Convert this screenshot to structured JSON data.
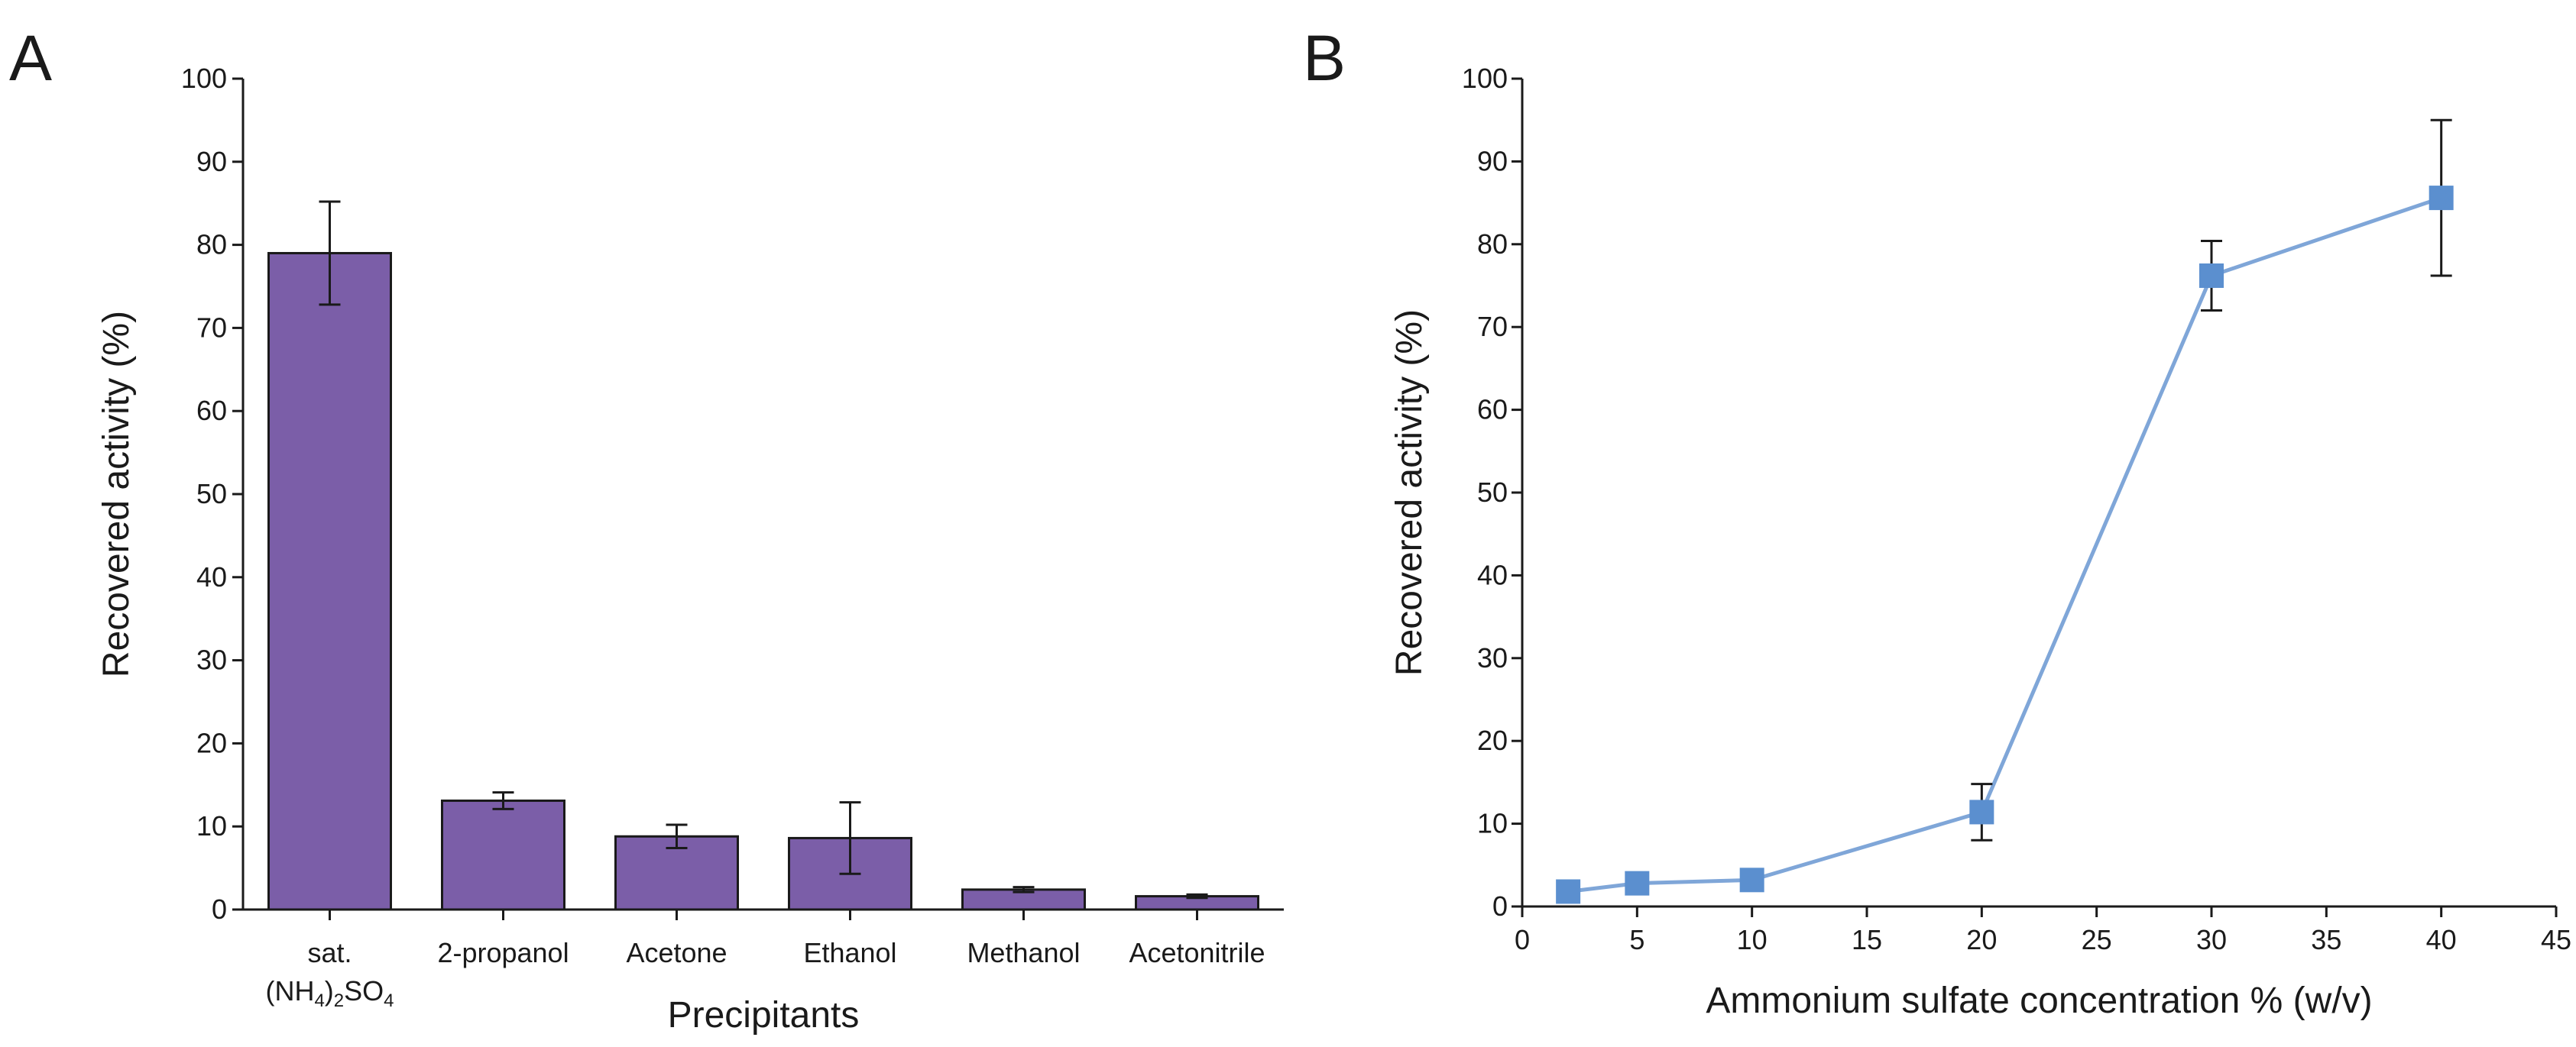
{
  "panels": [
    {
      "letter": "A",
      "chart_data": {
        "type": "bar",
        "categories": [
          "sat.",
          "2-propanol",
          "Acetone",
          "Ethanol",
          "Methanol",
          "Acetonitrile"
        ],
        "category_sublabel": {
          "index": 0,
          "parts": [
            "(NH",
            "4",
            ")",
            "2",
            "SO",
            "4"
          ]
        },
        "values": [
          79,
          13.1,
          8.8,
          8.6,
          2.4,
          1.6
        ],
        "errors": [
          6.2,
          1.0,
          1.4,
          4.3,
          0.3,
          0.2
        ],
        "xlabel": "Precipitants",
        "ylabel": "Recovered activity (%)",
        "ylim": [
          0,
          100
        ],
        "yticks": [
          0,
          10,
          20,
          30,
          40,
          50,
          60,
          70,
          80,
          90,
          100
        ],
        "bar_color": "#7b5ea8",
        "grid": false
      }
    },
    {
      "letter": "B",
      "chart_data": {
        "type": "line",
        "x": [
          2,
          5,
          10,
          20,
          30,
          40
        ],
        "y": [
          1.8,
          2.8,
          3.2,
          11.4,
          76.2,
          85.6
        ],
        "errors": [
          1.2,
          1.3,
          1.3,
          3.4,
          4.2,
          9.4
        ],
        "xlabel": "Ammonium sulfate concentration % (w/v)",
        "ylabel": "Recovered activity (%)",
        "xlim": [
          0,
          45
        ],
        "ylim": [
          0,
          100
        ],
        "xticks": [
          0,
          5,
          10,
          15,
          20,
          25,
          30,
          35,
          40,
          45
        ],
        "yticks": [
          0,
          10,
          20,
          30,
          40,
          50,
          60,
          70,
          80,
          90,
          100
        ],
        "line_color": "#7fa6d8",
        "marker_color": "#5b8fcf",
        "marker": "square",
        "grid": false
      }
    }
  ]
}
